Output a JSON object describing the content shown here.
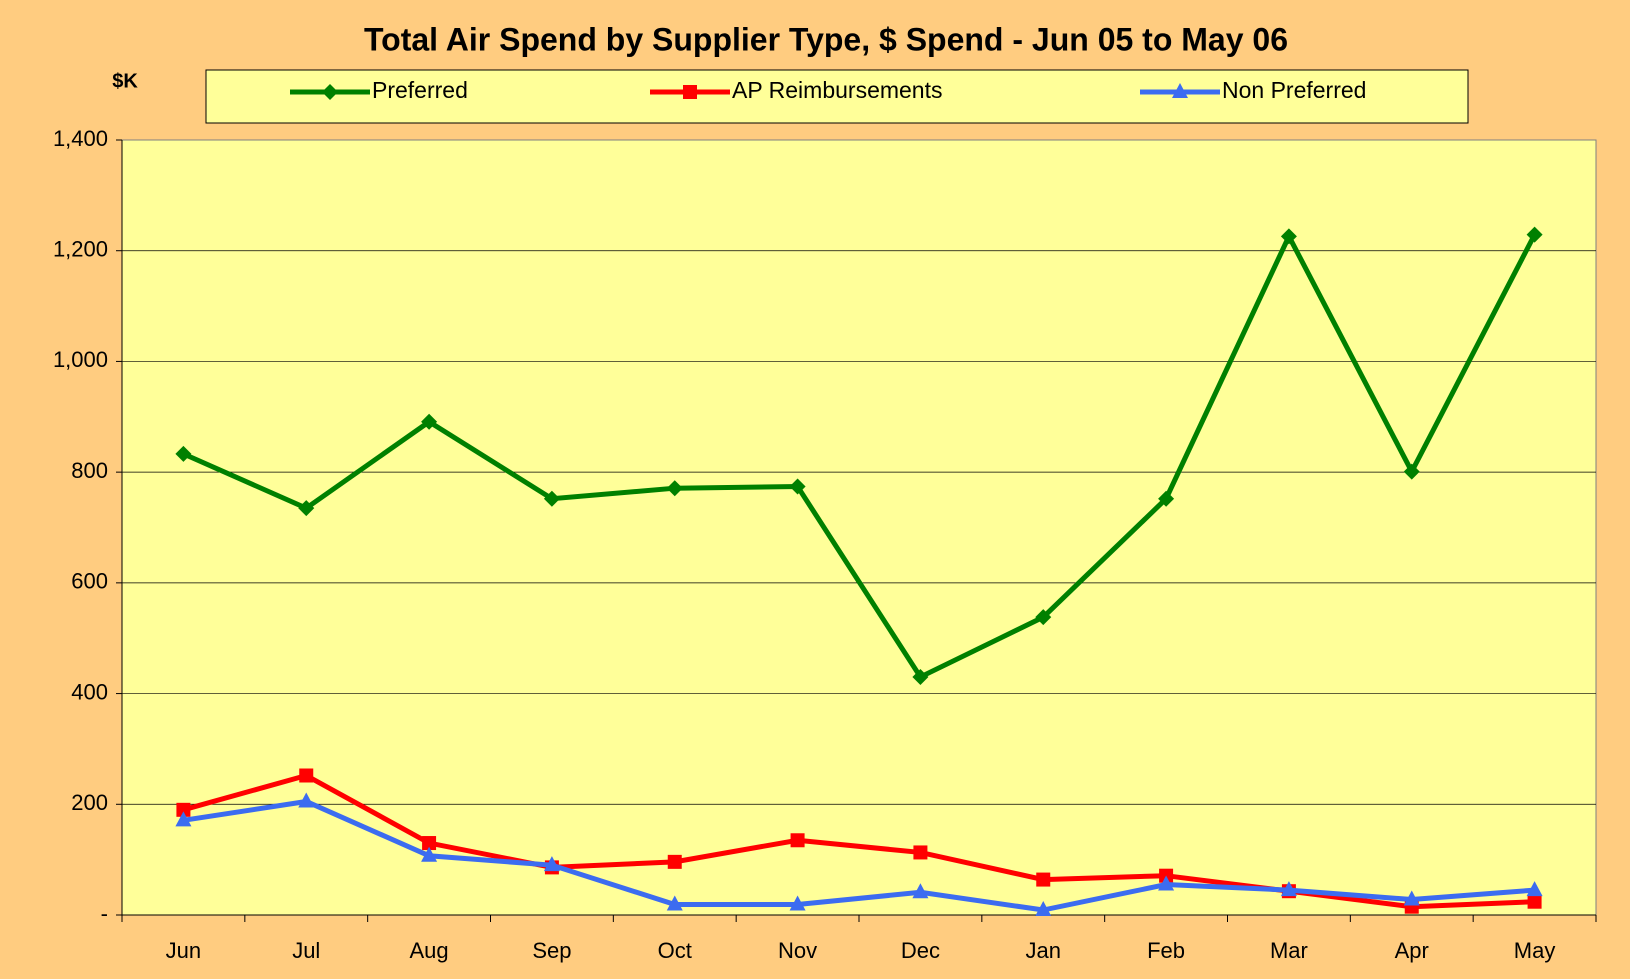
{
  "chart_data": {
    "type": "line",
    "title": "Total Air Spend by Supplier Type, $ Spend - Jun 05 to May 06",
    "y_label": "$K",
    "categories": [
      "Jun",
      "Jul",
      "Aug",
      "Sep",
      "Oct",
      "Nov",
      "Dec",
      "Jan",
      "Feb",
      "Mar",
      "Apr",
      "May"
    ],
    "series": [
      {
        "name": "Preferred",
        "color": "#008000",
        "marker": "diamond",
        "values": [
          833,
          735,
          891,
          752,
          771,
          774,
          430,
          538,
          752,
          1226,
          801,
          1229
        ]
      },
      {
        "name": "AP Reimbursements",
        "color": "#ff0000",
        "marker": "square",
        "values": [
          190,
          252,
          130,
          86,
          96,
          135,
          113,
          64,
          71,
          43,
          15,
          24
        ]
      },
      {
        "name": "Non Preferred",
        "color": "#3c6cf0",
        "marker": "triangle",
        "values": [
          171,
          205,
          107,
          90,
          19,
          19,
          41,
          9,
          55,
          45,
          28,
          45
        ]
      }
    ],
    "ylim": [
      0,
      1400
    ],
    "yticks": [
      {
        "value": 0,
        "label": "-"
      },
      200,
      400,
      600,
      800,
      {
        "value": 1000,
        "label": "1,000"
      },
      {
        "value": 1200,
        "label": "1,200"
      },
      {
        "value": 1400,
        "label": "1,400"
      }
    ],
    "grid": true,
    "legend": "top"
  }
}
